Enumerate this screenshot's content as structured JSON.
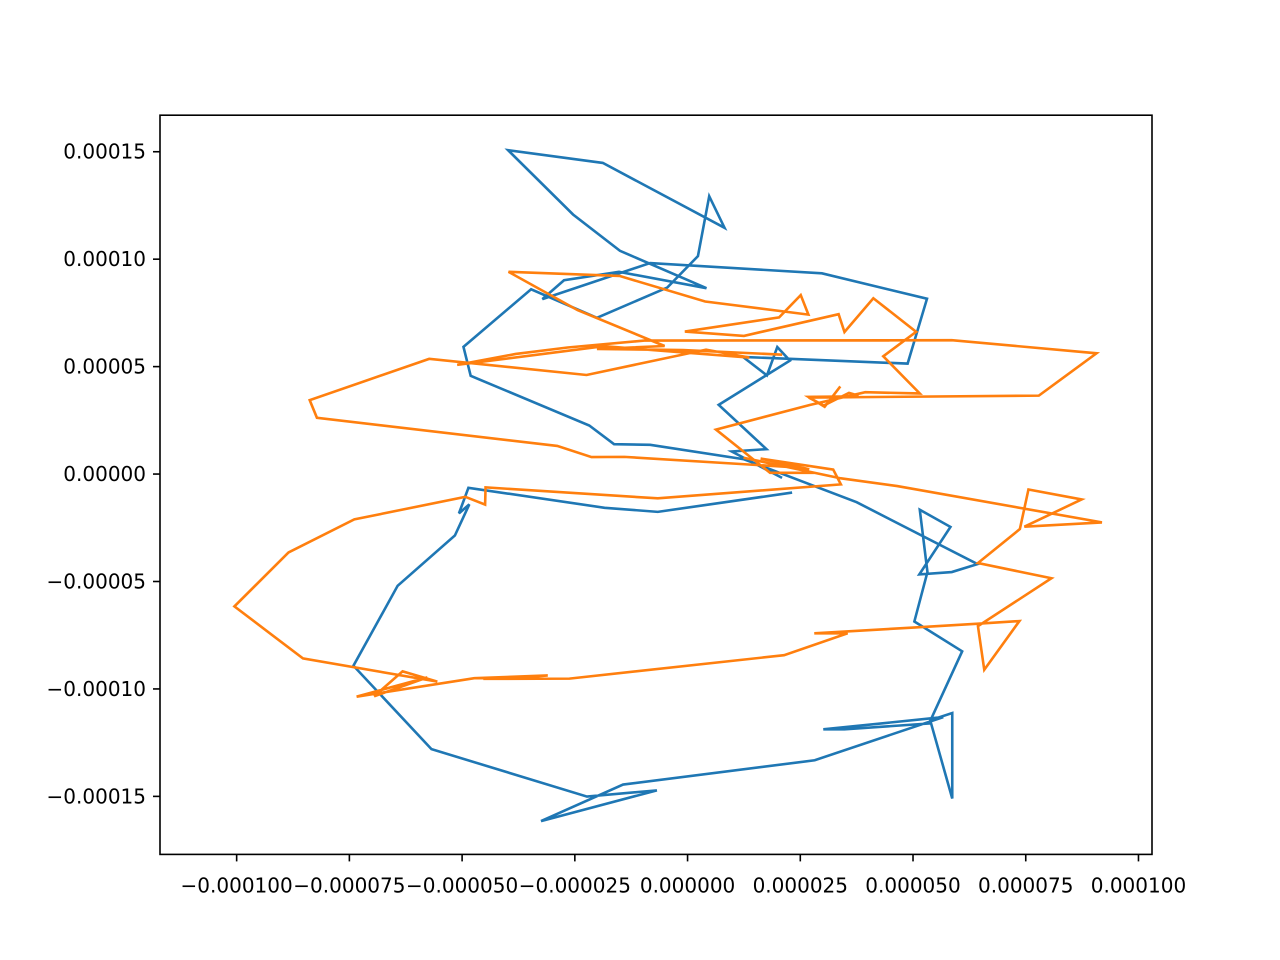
{
  "chart_data": {
    "type": "line",
    "title": "",
    "xlabel": "",
    "ylabel": "",
    "xlim": [
      -0.000117,
      0.000103
    ],
    "ylim": [
      -0.000177,
      0.000167
    ],
    "grid": false,
    "legend": "none",
    "xticks": [
      {
        "value": -0.0001,
        "label": "−0.000100"
      },
      {
        "value": -7.5e-05,
        "label": "−0.000075"
      },
      {
        "value": -5e-05,
        "label": "−0.000050"
      },
      {
        "value": -2.5e-05,
        "label": "−0.000025"
      },
      {
        "value": 0.0,
        "label": "0.000000"
      },
      {
        "value": 2.5e-05,
        "label": "0.000025"
      },
      {
        "value": 5e-05,
        "label": "0.000050"
      },
      {
        "value": 7.5e-05,
        "label": "0.000075"
      },
      {
        "value": 0.0001,
        "label": "0.000100"
      }
    ],
    "yticks": [
      {
        "value": 0.00015,
        "label": "0.00015"
      },
      {
        "value": 0.0001,
        "label": "0.00010"
      },
      {
        "value": 5e-05,
        "label": "0.00005"
      },
      {
        "value": 0.0,
        "label": "0.00000"
      },
      {
        "value": -5e-05,
        "label": "−0.00005"
      },
      {
        "value": -0.0001,
        "label": "−0.00010"
      },
      {
        "value": -0.00015,
        "label": "−0.00015"
      }
    ],
    "series": [
      {
        "color": "#1f77b4",
        "points": [
          [
            2.07e-05,
            -1.5e-06
          ],
          [
            9.8e-06,
            1.05e-05
          ],
          [
            1.75e-05,
            1.16e-05
          ],
          [
            1.75e-05,
            1.16e-05
          ],
          [
            6.9e-06,
            3.22e-05
          ],
          [
            2.27e-05,
            5.28e-05
          ],
          [
            1.99e-05,
            5.91e-05
          ],
          [
            1.76e-05,
            4.59e-05
          ],
          [
            1.23e-05,
            5.45e-05
          ],
          [
            4.88e-05,
            5.14e-05
          ],
          [
            5.31e-05,
            8.16e-05
          ],
          [
            2.98e-05,
            9.34e-05
          ],
          [
            -8.3e-06,
            9.82e-05
          ],
          [
            -3.22e-05,
            8.14e-05
          ],
          [
            -2.74e-05,
            9.02e-05
          ],
          [
            -1.52e-05,
            9.41e-05
          ],
          [
            4.2e-06,
            8.65e-05
          ],
          [
            -1.5e-05,
            0.0001039
          ],
          [
            -2.54e-05,
            0.0001208
          ],
          [
            -3.98e-05,
            0.0001507
          ],
          [
            -1.88e-05,
            0.0001448
          ],
          [
            8.2e-06,
            0.0001146
          ],
          [
            4.8e-06,
            0.0001293
          ],
          [
            2.3e-06,
            0.0001014
          ],
          [
            -4.5e-06,
            8.68e-05
          ],
          [
            -2.01e-05,
            7.27e-05
          ],
          [
            -3.47e-05,
            8.6e-05
          ],
          [
            -4.97e-05,
            5.92e-05
          ],
          [
            -4.81e-05,
            4.57e-05
          ],
          [
            -2.18e-05,
            2.26e-05
          ],
          [
            -1.63e-05,
            1.39e-05
          ],
          [
            -8.3e-06,
            1.36e-05
          ],
          [
            1.25e-05,
            6.9e-06
          ],
          [
            3.75e-05,
            -1.31e-05
          ],
          [
            6.43e-05,
            -4.19e-05
          ],
          [
            5.86e-05,
            -4.56e-05
          ],
          [
            5.14e-05,
            -4.67e-05
          ],
          [
            5.83e-05,
            -2.46e-05
          ],
          [
            5.15e-05,
            -1.66e-05
          ],
          [
            5.32e-05,
            -4.56e-05
          ],
          [
            5.03e-05,
            -6.86e-05
          ],
          [
            6.09e-05,
            -8.25e-05
          ],
          [
            5.39e-05,
            -0.0001145
          ],
          [
            5.87e-05,
            -0.0001112
          ],
          [
            5.87e-05,
            -0.000151
          ],
          [
            5.4e-05,
            -0.000116
          ],
          [
            3.48e-05,
            -0.0001188
          ],
          [
            3.01e-05,
            -0.0001188
          ],
          [
            5.67e-05,
            -0.0001131
          ],
          [
            2.82e-05,
            -0.0001332
          ],
          [
            -1.43e-05,
            -0.0001445
          ],
          [
            -3.25e-05,
            -0.0001615
          ],
          [
            -6.8e-06,
            -0.0001472
          ],
          [
            -2.23e-05,
            -0.0001501
          ],
          [
            -5.68e-05,
            -0.000128
          ],
          [
            -7.41e-05,
            -8.92e-05
          ],
          [
            -6.43e-05,
            -5.2e-05
          ],
          [
            -5.16e-05,
            -2.86e-05
          ],
          [
            -4.84e-05,
            -1.41e-05
          ],
          [
            -5.07e-05,
            -1.83e-05
          ],
          [
            -4.86e-05,
            -6.4e-06
          ],
          [
            -1.84e-05,
            -1.57e-05
          ],
          [
            -6.6e-06,
            -1.76e-05
          ],
          [
            2.29e-05,
            -8.7e-06
          ]
        ]
      },
      {
        "color": "#ff7f0e",
        "points": [
          [
            3.37e-05,
            4.03e-05
          ],
          [
            3.04e-05,
            3.13e-05
          ],
          [
            2.68e-05,
            3.59e-05
          ],
          [
            3.62e-05,
            3.61e-05
          ],
          [
            3.79e-05,
            3.65e-05
          ],
          [
            3.58e-05,
            3.78e-05
          ],
          [
            3.02e-05,
            3.19e-05
          ],
          [
            2.69e-05,
            3.56e-05
          ],
          [
            7.79e-05,
            3.65e-05
          ],
          [
            9.07e-05,
            5.62e-05
          ],
          [
            5.86e-05,
            6.23e-05
          ],
          [
            -9.6e-06,
            6.21e-05
          ],
          [
            -2.66e-05,
            5.89e-05
          ],
          [
            -3.81e-05,
            5.59e-05
          ],
          [
            -5.11e-05,
            5.08e-05
          ],
          [
            -1.86e-05,
            5.95e-05
          ],
          [
            1.37e-05,
            5.42e-05
          ],
          [
            4.1e-06,
            5.79e-05
          ],
          [
            4.1e-06,
            5.79e-05
          ],
          [
            -2.24e-05,
            4.61e-05
          ],
          [
            -5.73e-05,
            5.36e-05
          ],
          [
            -8.38e-05,
            3.44e-05
          ],
          [
            -8.22e-05,
            2.62e-05
          ],
          [
            -2.89e-05,
            1.31e-05
          ],
          [
            -2.13e-05,
            7.9e-06
          ],
          [
            -1.4e-05,
            8e-06
          ],
          [
            2.56e-05,
            2.9e-06
          ],
          [
            2.7e-05,
            2.2e-06
          ],
          [
            2.64e-05,
            2.5e-06
          ],
          [
            1.62e-05,
            7.2e-06
          ],
          [
            3.23e-05,
            2.1e-06
          ],
          [
            3.4e-05,
            -4.8e-06
          ],
          [
            -6.6e-06,
            -1.13e-05
          ],
          [
            -4.48e-05,
            -6.2e-06
          ],
          [
            -4.49e-05,
            -1.42e-05
          ],
          [
            -4.93e-05,
            -1.06e-05
          ],
          [
            -7.39e-05,
            -2.11e-05
          ],
          [
            -8.85e-05,
            -3.65e-05
          ],
          [
            -0.0001005,
            -6.16e-05
          ],
          [
            -8.53e-05,
            -8.58e-05
          ],
          [
            -5.55e-05,
            -9.66e-05
          ],
          [
            -6.32e-05,
            -9.18e-05
          ],
          [
            -6.95e-05,
            -0.0001034
          ],
          [
            -5.77e-05,
            -9.46e-05
          ],
          [
            -7.34e-05,
            -0.0001036
          ],
          [
            -4.73e-05,
            -9.5e-05
          ],
          [
            -3.1e-05,
            -9.37e-05
          ],
          [
            -3.93e-05,
            -9.51e-05
          ],
          [
            -4.53e-05,
            -9.53e-05
          ],
          [
            -2.62e-05,
            -9.52e-05
          ],
          [
            2.14e-05,
            -8.43e-05
          ],
          [
            3.55e-05,
            -7.41e-05
          ],
          [
            2.81e-05,
            -7.41e-05
          ],
          [
            4.96e-05,
            -7.15e-05
          ],
          [
            6.4e-05,
            -6.97e-05
          ],
          [
            7.36e-05,
            -6.84e-05
          ],
          [
            6.58e-05,
            -9.11e-05
          ],
          [
            6.44e-05,
            -7.08e-05
          ],
          [
            8.07e-05,
            -4.85e-05
          ],
          [
            6.44e-05,
            -4.14e-05
          ],
          [
            7.37e-05,
            -2.56e-05
          ],
          [
            7.56e-05,
            -7.2e-06
          ],
          [
            8.74e-05,
            -1.18e-05
          ],
          [
            7.47e-05,
            -2.45e-05
          ],
          [
            9.19e-05,
            -2.25e-05
          ],
          [
            4.65e-05,
            -5.6e-06
          ],
          [
            3.4e-05,
            -2e-06
          ],
          [
            1.24e-05,
            7.6e-06
          ],
          [
            2.81e-05,
            6e-07
          ],
          [
            1.83e-05,
            6e-07
          ],
          [
            6.3e-06,
            2.07e-05
          ],
          [
            2.72e-05,
            3.22e-05
          ],
          [
            3.94e-05,
            3.81e-05
          ],
          [
            5.15e-05,
            3.75e-05
          ],
          [
            4.34e-05,
            5.48e-05
          ],
          [
            5.07e-05,
            6.62e-05
          ],
          [
            4.12e-05,
            8.18e-05
          ],
          [
            3.48e-05,
            6.61e-05
          ],
          [
            3.35e-05,
            7.44e-05
          ],
          [
            1.25e-05,
            6.43e-05
          ],
          [
            -6e-07,
            6.63e-05
          ],
          [
            2.03e-05,
            7.29e-05
          ],
          [
            2.51e-05,
            8.33e-05
          ],
          [
            2.68e-05,
            7.42e-05
          ],
          [
            3.9e-06,
            8.03e-05
          ],
          [
            -1.51e-05,
            9.22e-05
          ],
          [
            -3.97e-05,
            9.41e-05
          ],
          [
            -2.44e-05,
            7.63e-05
          ],
          [
            -5.1e-06,
            5.96e-05
          ],
          [
            -2.01e-05,
            5.82e-05
          ],
          [
            -1e-06,
            5.77e-05
          ],
          [
            2.07e-05,
            5.56e-05
          ]
        ]
      }
    ]
  }
}
